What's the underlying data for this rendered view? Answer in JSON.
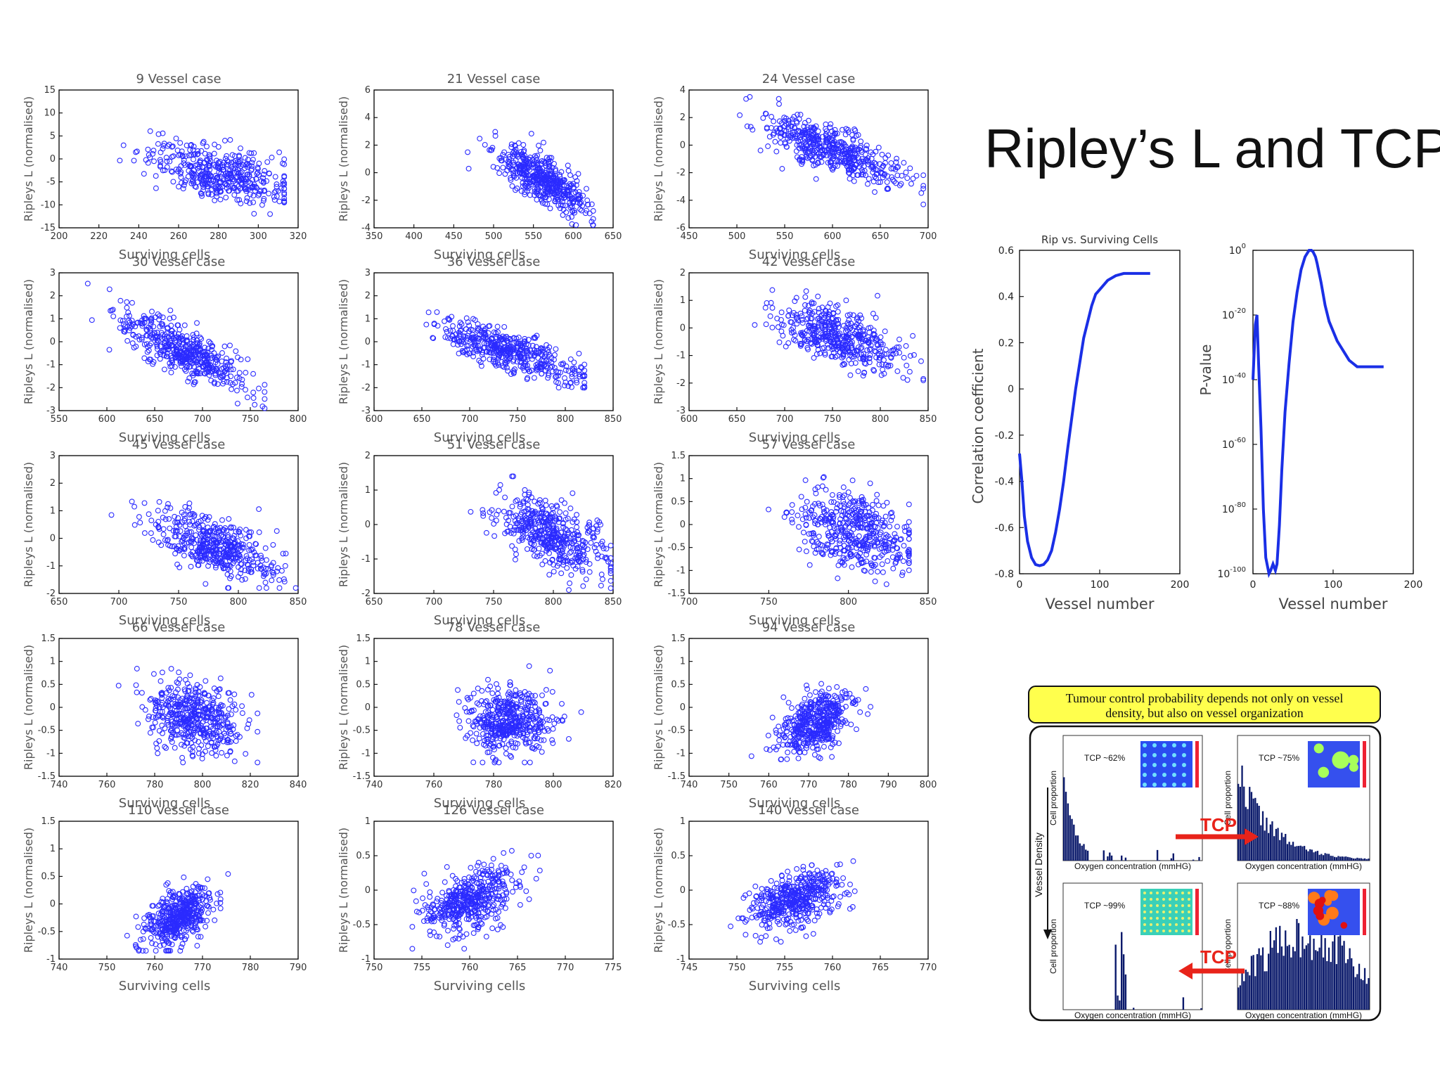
{
  "slide_title": "Ripley’s L and TCP",
  "chart_data": [
    {
      "type": "scatter",
      "title": "9 Vessel case",
      "xlabel": "Surviving cells",
      "ylabel": "Ripleys L (normalised)",
      "xlim": [
        200,
        320
      ],
      "ylim": [
        -15,
        15
      ],
      "xticks": [
        200,
        220,
        240,
        260,
        280,
        300,
        320
      ],
      "yticks": [
        -15,
        -10,
        -5,
        0,
        5,
        10,
        15
      ],
      "cx": 280,
      "cy": -3,
      "sx": 18,
      "sy": 3.4,
      "r": -0.55,
      "n": 420,
      "x_range": [
        212,
        313
      ],
      "y_range": [
        -12,
        10
      ]
    },
    {
      "type": "scatter",
      "title": "21 Vessel case",
      "xlabel": "Surviving cells",
      "ylabel": "Ripleys L (normalised)",
      "xlim": [
        350,
        650
      ],
      "ylim": [
        -4,
        6
      ],
      "xticks": [
        350,
        400,
        450,
        500,
        550,
        600,
        650
      ],
      "yticks": [
        -4,
        -2,
        0,
        2,
        4,
        6
      ],
      "cx": 560,
      "cy": -0.5,
      "sx": 28,
      "sy": 1.2,
      "r": -0.75,
      "n": 480,
      "x_range": [
        395,
        625
      ],
      "y_range": [
        -3.8,
        4.3
      ]
    },
    {
      "type": "scatter",
      "title": "24 Vessel case",
      "xlabel": "Surviving cells",
      "ylabel": "Ripleys L (normalised)",
      "xlim": [
        450,
        700
      ],
      "ylim": [
        -6,
        4
      ],
      "xticks": [
        450,
        500,
        550,
        600,
        650,
        700
      ],
      "yticks": [
        -6,
        -4,
        -2,
        0,
        2,
        4
      ],
      "cx": 600,
      "cy": -0.3,
      "sx": 35,
      "sy": 1.2,
      "r": -0.75,
      "n": 480,
      "x_range": [
        490,
        695
      ],
      "y_range": [
        -4.3,
        3.5
      ]
    },
    {
      "type": "scatter",
      "title": "30 Vessel case",
      "xlabel": "Surviving cells",
      "ylabel": "Ripleys L (normalised)",
      "xlim": [
        550,
        800
      ],
      "ylim": [
        -3,
        3
      ],
      "xticks": [
        550,
        600,
        650,
        700,
        750,
        800
      ],
      "yticks": [
        -3,
        -2,
        -1,
        0,
        1,
        2,
        3
      ],
      "cx": 680,
      "cy": -0.4,
      "sx": 35,
      "sy": 0.85,
      "r": -0.8,
      "n": 480,
      "x_range": [
        580,
        765
      ],
      "y_range": [
        -2.9,
        2.9
      ]
    },
    {
      "type": "scatter",
      "title": "36 Vessel case",
      "xlabel": "Surviving cells",
      "ylabel": "Ripleys L (normalised)",
      "xlim": [
        600,
        850
      ],
      "ylim": [
        -3,
        3
      ],
      "xticks": [
        600,
        650,
        700,
        750,
        800,
        850
      ],
      "yticks": [
        -3,
        -2,
        -1,
        0,
        1,
        2,
        3
      ],
      "cx": 740,
      "cy": -0.4,
      "sx": 35,
      "sy": 0.65,
      "r": -0.75,
      "n": 460,
      "x_range": [
        620,
        820
      ],
      "y_range": [
        -2,
        2.9
      ]
    },
    {
      "type": "scatter",
      "title": "42 Vessel case",
      "xlabel": "Surviving cells",
      "ylabel": "Ripleys L (normalised)",
      "xlim": [
        600,
        850
      ],
      "ylim": [
        -3,
        2
      ],
      "xticks": [
        600,
        650,
        700,
        750,
        800,
        850
      ],
      "yticks": [
        -3,
        -2,
        -1,
        0,
        1,
        2
      ],
      "cx": 755,
      "cy": -0.3,
      "sx": 33,
      "sy": 0.6,
      "r": -0.6,
      "n": 460,
      "x_range": [
        620,
        845
      ],
      "y_range": [
        -2.4,
        1.8
      ]
    },
    {
      "type": "scatter",
      "title": "45 Vessel case",
      "xlabel": "Surviving cells",
      "ylabel": "Ripleys L (normalised)",
      "xlim": [
        650,
        850
      ],
      "ylim": [
        -2,
        3
      ],
      "xticks": [
        650,
        700,
        750,
        800,
        850
      ],
      "yticks": [
        -2,
        -1,
        0,
        1,
        2,
        3
      ],
      "cx": 780,
      "cy": -0.3,
      "sx": 25,
      "sy": 0.65,
      "r": -0.6,
      "n": 460,
      "x_range": [
        680,
        848
      ],
      "y_range": [
        -1.8,
        2.2
      ]
    },
    {
      "type": "scatter",
      "title": "51 Vessel case",
      "xlabel": "Surviving cells",
      "ylabel": "Ripleys L (normalised)",
      "xlim": [
        650,
        850
      ],
      "ylim": [
        -2,
        2
      ],
      "xticks": [
        650,
        700,
        750,
        800,
        850
      ],
      "yticks": [
        -2,
        -1,
        0,
        1,
        2
      ],
      "cx": 800,
      "cy": -0.3,
      "sx": 22,
      "sy": 0.55,
      "r": -0.5,
      "n": 460,
      "x_range": [
        695,
        848
      ],
      "y_range": [
        -1.9,
        1.4
      ]
    },
    {
      "type": "scatter",
      "title": "57 Vessel case",
      "xlabel": "Surviving cells",
      "ylabel": "Ripleys L (normalised)",
      "xlim": [
        700,
        850
      ],
      "ylim": [
        -1.5,
        1.5
      ],
      "xticks": [
        700,
        750,
        800,
        850
      ],
      "yticks": [
        -1.5,
        -1,
        -0.5,
        0,
        0.5,
        1,
        1.5
      ],
      "cx": 805,
      "cy": -0.2,
      "sx": 18,
      "sy": 0.45,
      "r": -0.35,
      "n": 460,
      "x_range": [
        705,
        838
      ],
      "y_range": [
        -1.3,
        1.25
      ]
    },
    {
      "type": "scatter",
      "title": "66 Vessel case",
      "xlabel": "Surviving cells",
      "ylabel": "Ripleys L (normalised)",
      "xlim": [
        740,
        840
      ],
      "ylim": [
        -1.5,
        1.5
      ],
      "xticks": [
        740,
        760,
        780,
        800,
        820,
        840
      ],
      "yticks": [
        -1.5,
        -1,
        -0.5,
        0,
        0.5,
        1,
        1.5
      ],
      "cx": 797,
      "cy": -0.25,
      "sx": 10,
      "sy": 0.38,
      "r": -0.2,
      "n": 460,
      "x_range": [
        742,
        823
      ],
      "y_range": [
        -1.2,
        1.35
      ]
    },
    {
      "type": "scatter",
      "title": "78 Vessel case",
      "xlabel": "Surviving cells",
      "ylabel": "Ripleys L (normalised)",
      "xlim": [
        740,
        820
      ],
      "ylim": [
        -1.5,
        1.5
      ],
      "xticks": [
        740,
        760,
        780,
        800,
        820
      ],
      "yticks": [
        -1.5,
        -1,
        -0.5,
        0,
        0.5,
        1,
        1.5
      ],
      "cx": 785,
      "cy": -0.3,
      "sx": 7,
      "sy": 0.35,
      "r": 0.05,
      "n": 460,
      "x_range": [
        748,
        816
      ],
      "y_range": [
        -1.2,
        1.25
      ]
    },
    {
      "type": "scatter",
      "title": "94 Vessel case",
      "xlabel": "Surviving cells",
      "ylabel": "Ripleys L (normalised)",
      "xlim": [
        740,
        800
      ],
      "ylim": [
        -1.5,
        1.5
      ],
      "xticks": [
        740,
        750,
        760,
        770,
        780,
        790,
        800
      ],
      "yticks": [
        -1.5,
        -1,
        -0.5,
        0,
        0.5,
        1,
        1.5
      ],
      "cx": 772,
      "cy": -0.3,
      "sx": 4.5,
      "sy": 0.35,
      "r": 0.5,
      "n": 460,
      "x_range": [
        745,
        798
      ],
      "y_range": [
        -1.2,
        1.05
      ]
    },
    {
      "type": "scatter",
      "title": "110 Vessel case",
      "xlabel": "Surviving cells",
      "ylabel": "Ripleys L (normalised)",
      "xlim": [
        740,
        790
      ],
      "ylim": [
        -1,
        1.5
      ],
      "xticks": [
        740,
        750,
        760,
        770,
        780,
        790
      ],
      "yticks": [
        -1,
        -0.5,
        0,
        0.5,
        1,
        1.5
      ],
      "cx": 765,
      "cy": -0.25,
      "sx": 3.5,
      "sy": 0.27,
      "r": 0.5,
      "n": 460,
      "x_range": [
        746,
        784
      ],
      "y_range": [
        -0.85,
        1.05
      ]
    },
    {
      "type": "scatter",
      "title": "126 Vessel case",
      "xlabel": "Surviving cells",
      "ylabel": "Ripleys L (normalised)",
      "xlim": [
        750,
        775
      ],
      "ylim": [
        -1,
        1
      ],
      "xticks": [
        750,
        755,
        760,
        765,
        770,
        775
      ],
      "yticks": [
        -1,
        -0.5,
        0,
        0.5,
        1
      ],
      "cx": 760,
      "cy": -0.15,
      "sx": 2.4,
      "sy": 0.25,
      "r": 0.5,
      "n": 460,
      "x_range": [
        754,
        772
      ],
      "y_range": [
        -0.85,
        0.6
      ]
    },
    {
      "type": "scatter",
      "title": "140 Vessel case",
      "xlabel": "Surviving cells",
      "ylabel": "Ripleys L (normalised)",
      "xlim": [
        745,
        770
      ],
      "ylim": [
        -1,
        1
      ],
      "xticks": [
        745,
        750,
        755,
        760,
        765,
        770
      ],
      "yticks": [
        -1,
        -0.5,
        0,
        0.5,
        1
      ],
      "cx": 756,
      "cy": -0.15,
      "sx": 2.5,
      "sy": 0.22,
      "r": 0.5,
      "n": 460,
      "x_range": [
        749,
        768
      ],
      "y_range": [
        -0.75,
        0.55
      ]
    },
    {
      "type": "line",
      "title": "Rip vs. Surviving Cells",
      "xlabel": "Vessel number",
      "ylabel": "Correlation coefficient",
      "xlim": [
        0,
        200
      ],
      "ylim": [
        -0.8,
        0.6
      ],
      "xticks": [
        0,
        100,
        200
      ],
      "yticks": [
        -0.8,
        -0.6,
        -0.4,
        -0.2,
        0,
        0.2,
        0.4,
        0.6
      ],
      "x": [
        0,
        3,
        6,
        10,
        15,
        20,
        25,
        30,
        35,
        40,
        45,
        50,
        55,
        60,
        70,
        80,
        90,
        95,
        100,
        110,
        120,
        130,
        140,
        150,
        163
      ],
      "y": [
        -0.28,
        -0.4,
        -0.55,
        -0.66,
        -0.73,
        -0.76,
        -0.765,
        -0.76,
        -0.74,
        -0.7,
        -0.62,
        -0.52,
        -0.4,
        -0.26,
        0.0,
        0.22,
        0.36,
        0.41,
        0.43,
        0.47,
        0.49,
        0.5,
        0.5,
        0.5,
        0.5
      ]
    },
    {
      "type": "line",
      "title": "",
      "xlabel": "Vessel number",
      "ylabel": "P-value",
      "yscale": "log",
      "xlim": [
        0,
        200
      ],
      "ylim_exp": [
        -100,
        0
      ],
      "xticks": [
        0,
        100,
        200
      ],
      "yticks_exp": [
        -100,
        -80,
        -60,
        -40,
        -20,
        0
      ],
      "x": [
        0,
        3,
        5,
        7,
        10,
        13,
        16,
        20,
        22,
        25,
        28,
        30,
        33,
        36,
        40,
        45,
        50,
        55,
        60,
        65,
        70,
        73,
        75,
        78,
        80,
        85,
        90,
        95,
        100,
        105,
        110,
        115,
        120,
        125,
        130,
        140,
        150,
        163
      ],
      "y_exp": [
        -40,
        -23,
        -20,
        -35,
        -55,
        -80,
        -95,
        -100,
        -99,
        -97,
        -99,
        -97,
        -85,
        -68,
        -50,
        -35,
        -22,
        -13,
        -6,
        -2,
        0,
        0,
        -0.5,
        -2,
        -4,
        -10,
        -17,
        -22,
        -25,
        -28,
        -30,
        -32,
        -34,
        -35,
        -36,
        -36,
        -36,
        -36
      ]
    }
  ],
  "tcp_panel": {
    "banner_line1": "Tumour control probability depends not only on vessel",
    "banner_line2": "density, but also on vessel organization",
    "labels": [
      "TCP ~62%",
      "TCP ~75%",
      "TCP ~99%",
      "TCP ~88%"
    ],
    "arrow_label": "TCP",
    "vessel_density": "Vessel Density",
    "x_axis_note": "Oxygen concentration (mmHG)",
    "y_axis_note": "Cell proportion"
  }
}
